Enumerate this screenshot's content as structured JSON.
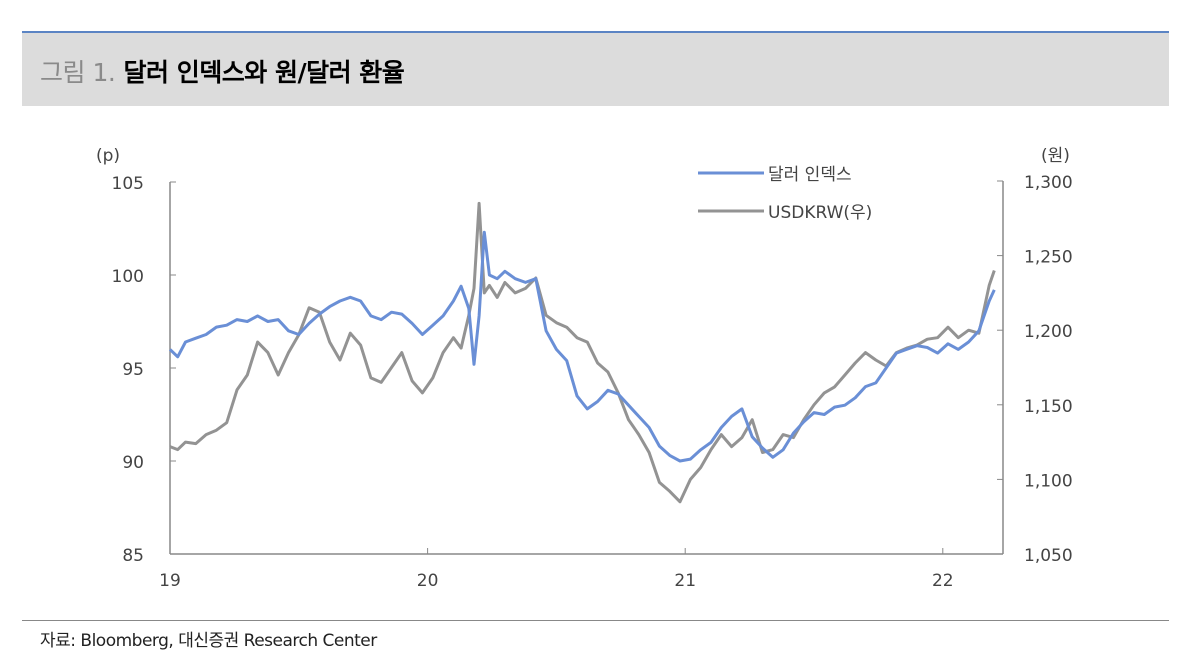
{
  "title": {
    "prefix": "그림 1.",
    "text": "달러 인덱스와 원/달러 환율"
  },
  "source": "자료: Bloomberg, 대신증권 Research Center",
  "colors": {
    "dollar_index": "#6a8fd6",
    "usdkrw": "#939393",
    "header_bg": "#dcdcdc",
    "header_line": "#5b84c4"
  },
  "chart_data": {
    "type": "line",
    "title": "달러 인덱스와 원/달러 환율",
    "xlabel": "",
    "ylabel_left": "(p)",
    "ylabel_right": "(원)",
    "x_ticks": [
      "19",
      "20",
      "21",
      "22"
    ],
    "y_left_ticks": [
      "105",
      "100",
      "95",
      "90",
      "85"
    ],
    "y_right_ticks": [
      "1,300",
      "1,250",
      "1,200",
      "1,150",
      "1,100",
      "1,050"
    ],
    "ylim_left": [
      85,
      105
    ],
    "ylim_right": [
      1050,
      1300
    ],
    "xlim": [
      2019.0,
      2022.24
    ],
    "legend": [
      "달러 인덱스",
      "USDKRW(우)"
    ],
    "legend_position": "top-right",
    "grid": false,
    "series": [
      {
        "name": "달러 인덱스",
        "axis": "left",
        "x": [
          2019.0,
          2019.03,
          2019.06,
          2019.1,
          2019.14,
          2019.18,
          2019.22,
          2019.26,
          2019.3,
          2019.34,
          2019.38,
          2019.42,
          2019.46,
          2019.5,
          2019.54,
          2019.58,
          2019.62,
          2019.66,
          2019.7,
          2019.74,
          2019.78,
          2019.82,
          2019.86,
          2019.9,
          2019.94,
          2019.98,
          2020.02,
          2020.06,
          2020.1,
          2020.13,
          2020.16,
          2020.18,
          2020.2,
          2020.22,
          2020.24,
          2020.27,
          2020.3,
          2020.34,
          2020.38,
          2020.42,
          2020.46,
          2020.5,
          2020.54,
          2020.58,
          2020.62,
          2020.66,
          2020.7,
          2020.74,
          2020.78,
          2020.82,
          2020.86,
          2020.9,
          2020.94,
          2020.98,
          2021.02,
          2021.06,
          2021.1,
          2021.14,
          2021.18,
          2021.22,
          2021.26,
          2021.3,
          2021.34,
          2021.38,
          2021.42,
          2021.46,
          2021.5,
          2021.54,
          2021.58,
          2021.62,
          2021.66,
          2021.7,
          2021.74,
          2021.78,
          2021.82,
          2021.86,
          2021.9,
          2021.94,
          2021.98,
          2022.02,
          2022.06,
          2022.1,
          2022.14,
          2022.18,
          2022.2
        ],
        "values": [
          96.0,
          95.6,
          96.4,
          96.6,
          96.8,
          97.2,
          97.3,
          97.6,
          97.5,
          97.8,
          97.5,
          97.6,
          97.0,
          96.8,
          97.4,
          97.9,
          98.3,
          98.6,
          98.8,
          98.6,
          97.8,
          97.6,
          98.0,
          97.9,
          97.4,
          96.8,
          97.3,
          97.8,
          98.6,
          99.4,
          98.2,
          95.2,
          97.8,
          102.3,
          100.0,
          99.8,
          100.2,
          99.8,
          99.6,
          99.8,
          97.0,
          96.0,
          95.4,
          93.5,
          92.8,
          93.2,
          93.8,
          93.6,
          93.0,
          92.4,
          91.8,
          90.8,
          90.3,
          90.0,
          90.1,
          90.6,
          91.0,
          91.8,
          92.4,
          92.8,
          91.3,
          90.7,
          90.2,
          90.6,
          91.5,
          92.1,
          92.6,
          92.5,
          92.9,
          93.0,
          93.4,
          94.0,
          94.2,
          95.0,
          95.8,
          96.0,
          96.2,
          96.1,
          95.8,
          96.3,
          96.0,
          96.4,
          97.0,
          98.6,
          99.2
        ]
      },
      {
        "name": "USDKRW(우)",
        "axis": "right",
        "x": [
          2019.0,
          2019.03,
          2019.06,
          2019.1,
          2019.14,
          2019.18,
          2019.22,
          2019.26,
          2019.3,
          2019.34,
          2019.38,
          2019.42,
          2019.46,
          2019.5,
          2019.54,
          2019.58,
          2019.62,
          2019.66,
          2019.7,
          2019.74,
          2019.78,
          2019.82,
          2019.86,
          2019.9,
          2019.94,
          2019.98,
          2020.02,
          2020.06,
          2020.1,
          2020.13,
          2020.16,
          2020.18,
          2020.2,
          2020.22,
          2020.24,
          2020.27,
          2020.3,
          2020.34,
          2020.38,
          2020.42,
          2020.46,
          2020.5,
          2020.54,
          2020.58,
          2020.62,
          2020.66,
          2020.7,
          2020.74,
          2020.78,
          2020.82,
          2020.86,
          2020.9,
          2020.94,
          2020.98,
          2021.02,
          2021.06,
          2021.1,
          2021.14,
          2021.18,
          2021.22,
          2021.26,
          2021.3,
          2021.34,
          2021.38,
          2021.42,
          2021.46,
          2021.5,
          2021.54,
          2021.58,
          2021.62,
          2021.66,
          2021.7,
          2021.74,
          2021.78,
          2021.82,
          2021.86,
          2021.9,
          2021.94,
          2021.98,
          2022.02,
          2022.06,
          2022.1,
          2022.14,
          2022.18,
          2022.2
        ],
        "values": [
          1122,
          1120,
          1125,
          1124,
          1130,
          1133,
          1138,
          1160,
          1170,
          1192,
          1185,
          1170,
          1185,
          1197,
          1215,
          1212,
          1192,
          1180,
          1198,
          1190,
          1168,
          1165,
          1175,
          1185,
          1166,
          1158,
          1168,
          1185,
          1195,
          1188,
          1210,
          1228,
          1285,
          1225,
          1230,
          1222,
          1232,
          1225,
          1228,
          1235,
          1210,
          1205,
          1202,
          1195,
          1192,
          1178,
          1172,
          1158,
          1140,
          1130,
          1118,
          1098,
          1092,
          1085,
          1100,
          1108,
          1120,
          1130,
          1122,
          1128,
          1140,
          1118,
          1120,
          1130,
          1128,
          1140,
          1150,
          1158,
          1162,
          1170,
          1178,
          1185,
          1180,
          1176,
          1185,
          1188,
          1190,
          1194,
          1195,
          1202,
          1195,
          1200,
          1198,
          1230,
          1240
        ]
      }
    ]
  }
}
